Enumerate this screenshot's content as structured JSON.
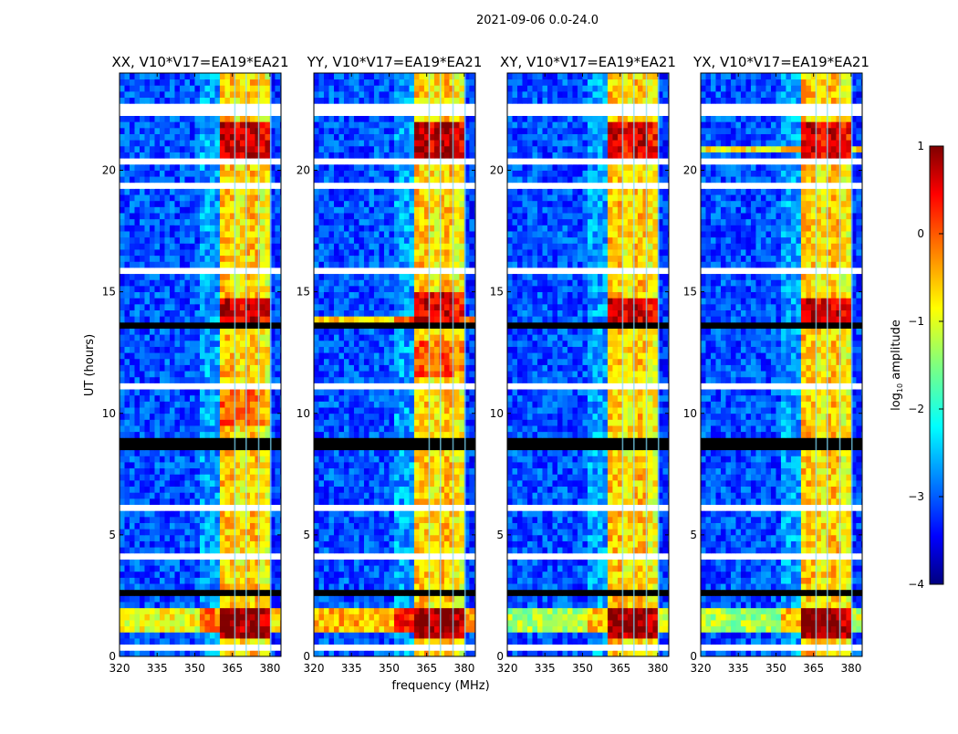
{
  "chart_data": {
    "type": "heatmap",
    "title": "2021-09-06 0.0-24.0",
    "xlabel": "frequency (MHz)",
    "ylabel": "UT (hours)",
    "xlim": [
      320,
      384.4
    ],
    "ylim": [
      0,
      24
    ],
    "xticks": [
      "320",
      "335",
      "350",
      "365",
      "380"
    ],
    "xtick_values": [
      320,
      335,
      350,
      365,
      380
    ],
    "yticks": [
      "0",
      "5",
      "10",
      "15",
      "20"
    ],
    "ytick_values": [
      0,
      5,
      10,
      15,
      20
    ],
    "grid": false,
    "colorbar": {
      "label_prefix": "log",
      "label_sub": "10",
      "label_suffix": " amplitude",
      "range": [
        -4,
        1
      ],
      "ticks": [
        "1",
        "0",
        "−1",
        "−2",
        "−3",
        "−4"
      ],
      "tick_values": [
        1,
        0,
        -1,
        -2,
        -3,
        -4
      ],
      "colormap": "jet"
    },
    "resolution": {
      "freq_bin_mhz": 2,
      "time_bin_hours": 0.25
    },
    "freq_bands": [
      {
        "from": 320,
        "to": 352,
        "level": -3.0
      },
      {
        "from": 352,
        "to": 360,
        "level": -2.6
      },
      {
        "from": 360,
        "to": 366,
        "level": -0.6
      },
      {
        "from": 366,
        "to": 370,
        "level": -0.8
      },
      {
        "from": 370,
        "to": 376,
        "level": -0.6
      },
      {
        "from": 376,
        "to": 380,
        "level": -0.9
      },
      {
        "from": 380,
        "to": 384.4,
        "level": -3.1
      }
    ],
    "time_events": [
      {
        "from": 0.25,
        "to": 0.5,
        "type": "flag"
      },
      {
        "from": 2.5,
        "to": 2.75,
        "type": "black"
      },
      {
        "from": 4.0,
        "to": 4.25,
        "type": "flag"
      },
      {
        "from": 6.0,
        "to": 6.25,
        "type": "flag"
      },
      {
        "from": 8.5,
        "to": 9.0,
        "type": "black"
      },
      {
        "from": 11.0,
        "to": 11.25,
        "type": "flag"
      },
      {
        "from": 13.5,
        "to": 13.75,
        "type": "black"
      },
      {
        "from": 15.75,
        "to": 16.0,
        "type": "flag"
      },
      {
        "from": 19.25,
        "to": 19.5,
        "type": "flag"
      },
      {
        "from": 20.25,
        "to": 20.5,
        "type": "flag"
      },
      {
        "from": 22.25,
        "to": 22.75,
        "type": "flag"
      }
    ],
    "panels": [
      {
        "title": "XX, V10*V17=EA19*EA21",
        "rfi": [
          {
            "from": 0.75,
            "to": 2.0,
            "scope": "band",
            "delta": 1.6
          },
          {
            "from": 1.0,
            "to": 2.0,
            "scope": "all",
            "delta": 2.4
          },
          {
            "from": 13.75,
            "to": 14.75,
            "scope": "band",
            "delta": 1.3
          },
          {
            "from": 20.5,
            "to": 22.0,
            "scope": "band",
            "delta": 1.3
          },
          {
            "from": 9.5,
            "to": 11.0,
            "scope": "band",
            "delta": 0.5
          }
        ]
      },
      {
        "title": "YY, V10*V17=EA19*EA21",
        "rfi": [
          {
            "from": 0.75,
            "to": 2.0,
            "scope": "band",
            "delta": 1.6
          },
          {
            "from": 1.0,
            "to": 2.0,
            "scope": "all",
            "delta": 2.9
          },
          {
            "from": 13.75,
            "to": 14.0,
            "scope": "all",
            "delta": 2.8
          },
          {
            "from": 13.75,
            "to": 15.0,
            "scope": "band",
            "delta": 1.2
          },
          {
            "from": 20.5,
            "to": 22.0,
            "scope": "band",
            "delta": 1.4
          },
          {
            "from": 11.5,
            "to": 13.0,
            "scope": "band",
            "delta": 0.6
          }
        ]
      },
      {
        "title": "XY, V10*V17=EA19*EA21",
        "rfi": [
          {
            "from": 0.75,
            "to": 2.0,
            "scope": "band",
            "delta": 1.6
          },
          {
            "from": 1.0,
            "to": 2.0,
            "scope": "all",
            "delta": 2.0
          },
          {
            "from": 13.75,
            "to": 14.75,
            "scope": "band",
            "delta": 1.2
          },
          {
            "from": 20.5,
            "to": 22.0,
            "scope": "band",
            "delta": 1.2
          }
        ]
      },
      {
        "title": "YX, V10*V17=EA19*EA21",
        "rfi": [
          {
            "from": 0.75,
            "to": 2.0,
            "scope": "band",
            "delta": 1.6
          },
          {
            "from": 1.0,
            "to": 2.0,
            "scope": "all",
            "delta": 2.0
          },
          {
            "from": 13.75,
            "to": 14.75,
            "scope": "band",
            "delta": 1.2
          },
          {
            "from": 20.5,
            "to": 22.0,
            "scope": "band",
            "delta": 1.2
          },
          {
            "from": 20.75,
            "to": 21.0,
            "scope": "all",
            "delta": 2.5
          }
        ]
      }
    ]
  }
}
